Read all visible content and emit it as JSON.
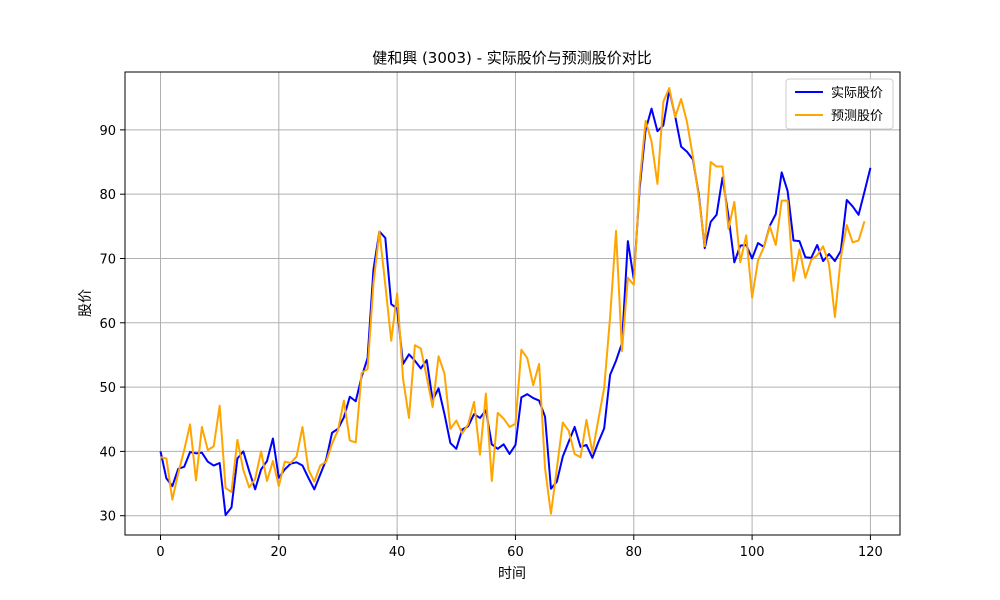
{
  "chart_data": {
    "type": "line",
    "title": "健和興 (3003) - 实际股价与预测股价对比",
    "xlabel": "时间",
    "ylabel": "股价",
    "xlim": [
      -6,
      125
    ],
    "ylim": [
      27,
      99
    ],
    "xticks": [
      0,
      20,
      40,
      60,
      80,
      100,
      120
    ],
    "yticks": [
      30,
      40,
      50,
      60,
      70,
      80,
      90
    ],
    "grid": true,
    "legend_position": "top-right",
    "series": [
      {
        "name": "实际股价",
        "color": "#0000ff",
        "x_start": 0,
        "values": [
          40.0,
          35.8,
          34.6,
          37.3,
          37.6,
          39.9,
          39.7,
          39.8,
          38.4,
          37.8,
          38.2,
          30.1,
          31.3,
          38.9,
          40.0,
          36.9,
          34.1,
          37.2,
          38.5,
          42.0,
          35.9,
          37.2,
          38.1,
          38.3,
          37.8,
          35.9,
          34.1,
          36.4,
          38.7,
          42.9,
          43.5,
          45.3,
          48.5,
          47.8,
          51.6,
          54.5,
          68.3,
          74.2,
          73.2,
          62.9,
          62.2,
          53.6,
          55.1,
          54.1,
          52.9,
          54.2,
          48.0,
          49.8,
          45.8,
          41.3,
          40.4,
          43.4,
          43.9,
          45.8,
          45.2,
          46.4,
          41.1,
          40.4,
          41.1,
          39.6,
          41.0,
          48.4,
          48.9,
          48.3,
          47.9,
          45.4,
          34.2,
          35.3,
          39.2,
          41.5,
          43.8,
          40.7,
          41.0,
          39.0,
          41.4,
          43.6,
          51.9,
          54.1,
          56.8,
          72.7,
          66.8,
          81.0,
          90.0,
          93.3,
          89.8,
          90.7,
          96.2,
          92.1,
          87.4,
          86.6,
          85.4,
          79.9,
          71.6,
          75.7,
          76.8,
          82.6,
          76.6,
          69.4,
          72.0,
          72.1,
          70.0,
          72.4,
          71.8,
          75.1,
          76.9,
          83.4,
          80.5,
          72.8,
          72.7,
          70.2,
          70.1,
          72.1,
          69.6,
          70.7,
          69.6,
          71.2,
          79.1,
          78.1,
          76.8,
          80.4,
          84.1
        ]
      },
      {
        "name": "预测股价",
        "color": "#ffa500",
        "x_start": 0,
        "values": [
          39.1,
          38.9,
          32.5,
          36.6,
          40.2,
          44.2,
          35.5,
          43.8,
          40.2,
          40.8,
          47.1,
          34.3,
          33.7,
          41.8,
          37.1,
          34.4,
          35.7,
          40.0,
          35.4,
          38.5,
          34.6,
          38.4,
          38.2,
          39.2,
          43.8,
          37.2,
          35.3,
          37.8,
          38.4,
          41.2,
          43.3,
          47.9,
          41.7,
          41.4,
          52.2,
          52.8,
          66.1,
          74.2,
          65.9,
          57.2,
          64.6,
          51.3,
          45.2,
          56.5,
          56.0,
          51.6,
          46.9,
          54.8,
          52.1,
          43.5,
          44.8,
          42.8,
          44.2,
          47.7,
          39.5,
          49.0,
          35.4,
          46.0,
          45.1,
          43.8,
          44.3,
          55.8,
          54.5,
          50.3,
          53.6,
          37.4,
          30.3,
          37.4,
          44.5,
          43.2,
          39.6,
          39.1,
          44.9,
          39.8,
          44.9,
          49.9,
          60.9,
          74.3,
          55.6,
          67.0,
          65.9,
          81.9,
          91.4,
          88.2,
          81.6,
          94.4,
          96.5,
          92.0,
          94.8,
          91.2,
          85.8,
          79.5,
          71.9,
          85.0,
          84.3,
          84.3,
          74.6,
          78.8,
          69.4,
          73.6,
          63.9,
          69.7,
          71.8,
          75.0,
          72.1,
          79.0,
          79.0,
          66.5,
          71.4,
          67.0,
          69.8,
          70.5,
          71.9,
          69.1,
          60.9,
          70.2,
          75.2,
          72.5,
          72.8,
          75.8
        ]
      }
    ]
  }
}
